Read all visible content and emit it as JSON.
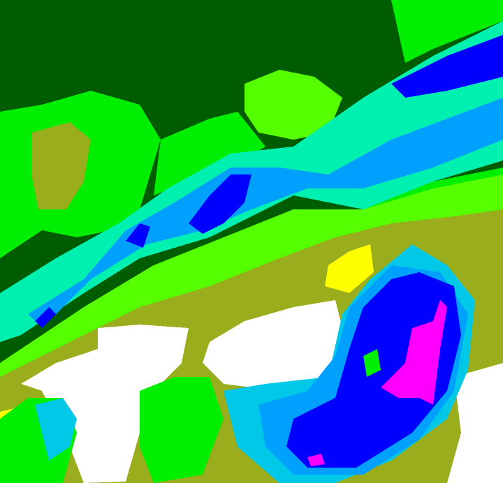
{
  "palette": {
    "dark_green": "#005c00",
    "green": "#00ee00",
    "light_green": "#55ff00",
    "olive": "#9aad1c",
    "white": "#ffffff",
    "yellow": "#ffff00",
    "aqua": "#00f0b0",
    "cyan": "#00c8e6",
    "light_blue": "#00a0ff",
    "blue": "#0000ff",
    "magenta": "#ff00ff"
  }
}
